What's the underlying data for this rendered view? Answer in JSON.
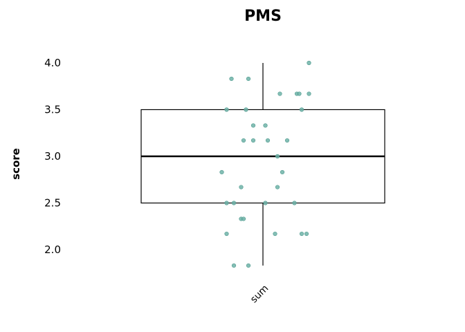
{
  "chart_data": {
    "type": "boxplot",
    "title": "PMS",
    "xlabel": "",
    "ylabel": "score",
    "categories": [
      "sum"
    ],
    "yticks": [
      2.0,
      2.5,
      3.0,
      3.5,
      4.0
    ],
    "ytick_labels": [
      "2.0",
      "2.5",
      "3.0",
      "3.5",
      "4.0"
    ],
    "ylim": [
      1.75,
      4.05
    ],
    "grid": false,
    "box": {
      "whisker_low": 1.83,
      "q1": 2.5,
      "median": 3.0,
      "q3": 3.5,
      "whisker_high": 4.0
    },
    "point_color": "#6fb3a8",
    "box_color": "#000000",
    "points": [
      {
        "jitter": 0.19,
        "value": 4.0
      },
      {
        "jitter": -0.13,
        "value": 3.83
      },
      {
        "jitter": -0.06,
        "value": 3.83
      },
      {
        "jitter": 0.07,
        "value": 3.67
      },
      {
        "jitter": 0.14,
        "value": 3.67
      },
      {
        "jitter": 0.15,
        "value": 3.67
      },
      {
        "jitter": 0.19,
        "value": 3.67
      },
      {
        "jitter": -0.15,
        "value": 3.5
      },
      {
        "jitter": -0.07,
        "value": 3.5
      },
      {
        "jitter": 0.16,
        "value": 3.5
      },
      {
        "jitter": -0.04,
        "value": 3.33
      },
      {
        "jitter": 0.01,
        "value": 3.33
      },
      {
        "jitter": -0.08,
        "value": 3.17
      },
      {
        "jitter": -0.04,
        "value": 3.17
      },
      {
        "jitter": 0.02,
        "value": 3.17
      },
      {
        "jitter": 0.1,
        "value": 3.17
      },
      {
        "jitter": 0.06,
        "value": 3.0
      },
      {
        "jitter": -0.17,
        "value": 2.83
      },
      {
        "jitter": 0.08,
        "value": 2.83
      },
      {
        "jitter": -0.09,
        "value": 2.67
      },
      {
        "jitter": 0.06,
        "value": 2.67
      },
      {
        "jitter": -0.15,
        "value": 2.5
      },
      {
        "jitter": -0.12,
        "value": 2.5
      },
      {
        "jitter": 0.01,
        "value": 2.5
      },
      {
        "jitter": 0.13,
        "value": 2.5
      },
      {
        "jitter": -0.09,
        "value": 2.33
      },
      {
        "jitter": -0.08,
        "value": 2.33
      },
      {
        "jitter": -0.15,
        "value": 2.17
      },
      {
        "jitter": 0.05,
        "value": 2.17
      },
      {
        "jitter": 0.16,
        "value": 2.17
      },
      {
        "jitter": 0.18,
        "value": 2.17
      },
      {
        "jitter": -0.12,
        "value": 1.83
      },
      {
        "jitter": -0.06,
        "value": 1.83
      }
    ]
  }
}
